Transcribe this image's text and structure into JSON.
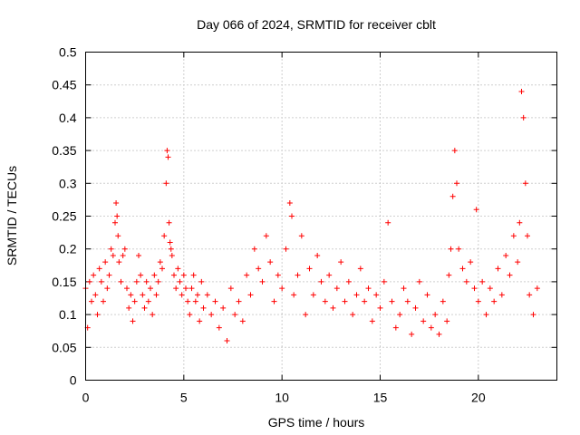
{
  "chart_data": {
    "type": "scatter",
    "title": "Day 066 of 2024, SRMTID for receiver cblt",
    "xlabel": "GPS time / hours",
    "ylabel": "SRMTID / TECUs",
    "xlim": [
      0,
      24
    ],
    "ylim": [
      0,
      0.5
    ],
    "xticks": [
      0,
      5,
      10,
      15,
      20
    ],
    "xtick_labels": [
      "0",
      "5",
      "10",
      "15",
      "20"
    ],
    "yticks": [
      0,
      0.05,
      0.1,
      0.15,
      0.2,
      0.25,
      0.3,
      0.35,
      0.4,
      0.45,
      0.5
    ],
    "ytick_labels": [
      "0",
      "0.05",
      "0.1",
      "0.15",
      "0.2",
      "0.25",
      "0.3",
      "0.35",
      "0.4",
      "0.45",
      "0.5"
    ],
    "grid": true,
    "marker": "plus",
    "color": "#ff0000",
    "series": [
      {
        "x": [
          0.0,
          0.1,
          0.2,
          0.3,
          0.4,
          0.5,
          0.6,
          0.7,
          0.8,
          0.9,
          1.0,
          1.1,
          1.2,
          1.3,
          1.4,
          1.5,
          1.55,
          1.6,
          1.65,
          1.7,
          1.8,
          1.9,
          2.0,
          2.1,
          2.2,
          2.3,
          2.4,
          2.5,
          2.6,
          2.7,
          2.8,
          2.9,
          3.0,
          3.1,
          3.2,
          3.3,
          3.4,
          3.5,
          3.6,
          3.7,
          3.8,
          3.9,
          4.0,
          4.1,
          4.15,
          4.2,
          4.25,
          4.3,
          4.35,
          4.4,
          4.5,
          4.6,
          4.7,
          4.8,
          4.9,
          5.0,
          5.1,
          5.2,
          5.3,
          5.4,
          5.5,
          5.6,
          5.7,
          5.8,
          5.9,
          6.0,
          6.2,
          6.4,
          6.6,
          6.8,
          7.0,
          7.2,
          7.4,
          7.6,
          7.8,
          8.0,
          8.2,
          8.4,
          8.6,
          8.8,
          9.0,
          9.2,
          9.4,
          9.6,
          9.8,
          10.0,
          10.2,
          10.4,
          10.5,
          10.6,
          10.8,
          11.0,
          11.2,
          11.4,
          11.6,
          11.8,
          12.0,
          12.2,
          12.4,
          12.6,
          12.8,
          13.0,
          13.2,
          13.4,
          13.6,
          13.8,
          14.0,
          14.2,
          14.4,
          14.6,
          14.8,
          15.0,
          15.2,
          15.4,
          15.6,
          15.8,
          16.0,
          16.2,
          16.4,
          16.6,
          16.8,
          17.0,
          17.2,
          17.4,
          17.6,
          17.8,
          18.0,
          18.2,
          18.4,
          18.5,
          18.6,
          18.7,
          18.8,
          18.9,
          19.0,
          19.2,
          19.4,
          19.6,
          19.8,
          19.9,
          20.0,
          20.2,
          20.4,
          20.6,
          20.8,
          21.0,
          21.2,
          21.4,
          21.6,
          21.8,
          22.0,
          22.1,
          22.2,
          22.3,
          22.4,
          22.5,
          22.6,
          22.8,
          23.0
        ],
        "y": [
          0.14,
          0.08,
          0.15,
          0.12,
          0.16,
          0.13,
          0.1,
          0.17,
          0.15,
          0.12,
          0.18,
          0.14,
          0.16,
          0.2,
          0.19,
          0.24,
          0.27,
          0.25,
          0.22,
          0.18,
          0.15,
          0.19,
          0.2,
          0.14,
          0.11,
          0.13,
          0.09,
          0.12,
          0.15,
          0.19,
          0.16,
          0.13,
          0.11,
          0.15,
          0.12,
          0.14,
          0.1,
          0.16,
          0.13,
          0.15,
          0.18,
          0.17,
          0.22,
          0.3,
          0.35,
          0.34,
          0.24,
          0.21,
          0.2,
          0.19,
          0.16,
          0.14,
          0.17,
          0.15,
          0.13,
          0.16,
          0.14,
          0.12,
          0.1,
          0.14,
          0.16,
          0.12,
          0.13,
          0.09,
          0.15,
          0.11,
          0.13,
          0.1,
          0.12,
          0.08,
          0.11,
          0.06,
          0.14,
          0.1,
          0.12,
          0.09,
          0.16,
          0.13,
          0.2,
          0.17,
          0.15,
          0.22,
          0.18,
          0.12,
          0.16,
          0.14,
          0.2,
          0.27,
          0.25,
          0.13,
          0.16,
          0.22,
          0.1,
          0.17,
          0.13,
          0.19,
          0.15,
          0.12,
          0.16,
          0.11,
          0.14,
          0.18,
          0.12,
          0.15,
          0.1,
          0.13,
          0.17,
          0.12,
          0.14,
          0.09,
          0.13,
          0.11,
          0.15,
          0.24,
          0.12,
          0.08,
          0.1,
          0.14,
          0.12,
          0.07,
          0.11,
          0.15,
          0.09,
          0.13,
          0.08,
          0.1,
          0.07,
          0.12,
          0.09,
          0.16,
          0.2,
          0.28,
          0.35,
          0.3,
          0.2,
          0.17,
          0.15,
          0.18,
          0.14,
          0.26,
          0.12,
          0.15,
          0.1,
          0.14,
          0.12,
          0.17,
          0.13,
          0.19,
          0.16,
          0.22,
          0.18,
          0.24,
          0.44,
          0.4,
          0.3,
          0.22,
          0.13,
          0.1,
          0.14
        ]
      }
    ]
  }
}
